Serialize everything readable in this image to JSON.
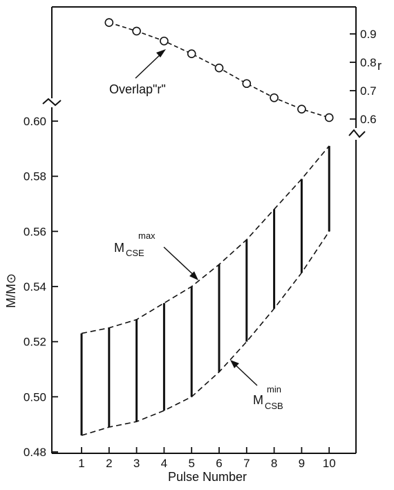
{
  "chart_data": {
    "type": "line",
    "xlabel": "Pulse Number",
    "ylabel": "M/M⊙",
    "right_axis_label": "r",
    "x_ticks": [
      "1",
      "2",
      "3",
      "4",
      "5",
      "6",
      "7",
      "8",
      "9",
      "10"
    ],
    "y_ticks": [
      "0.48",
      "0.50",
      "0.52",
      "0.54",
      "0.56",
      "0.58",
      "0.60"
    ],
    "ylim": [
      0.48,
      0.6
    ],
    "r_ticks": [
      "0.6",
      "0.7",
      "0.8",
      "0.9"
    ],
    "r_lim": [
      0.6,
      0.9
    ],
    "grid": false,
    "upper_panel": {
      "series_name": "Overlap\"r\"",
      "x": [
        2,
        3,
        4,
        5,
        6,
        7,
        8,
        9,
        10
      ],
      "r": [
        0.94,
        0.91,
        0.875,
        0.83,
        0.78,
        0.725,
        0.675,
        0.635,
        0.605
      ]
    },
    "band": {
      "upper_label": {
        "main": "M",
        "sup": "max",
        "sub": "CSE"
      },
      "lower_label": {
        "main": "M",
        "sup": "min",
        "sub": "CSB"
      },
      "x": [
        1,
        2,
        3,
        4,
        5,
        6,
        7,
        8,
        9,
        10
      ],
      "max": [
        0.523,
        0.525,
        0.528,
        0.534,
        0.54,
        0.548,
        0.557,
        0.568,
        0.579,
        0.591
      ],
      "min": [
        0.486,
        0.489,
        0.491,
        0.495,
        0.5,
        0.509,
        0.52,
        0.532,
        0.545,
        0.56
      ]
    }
  }
}
